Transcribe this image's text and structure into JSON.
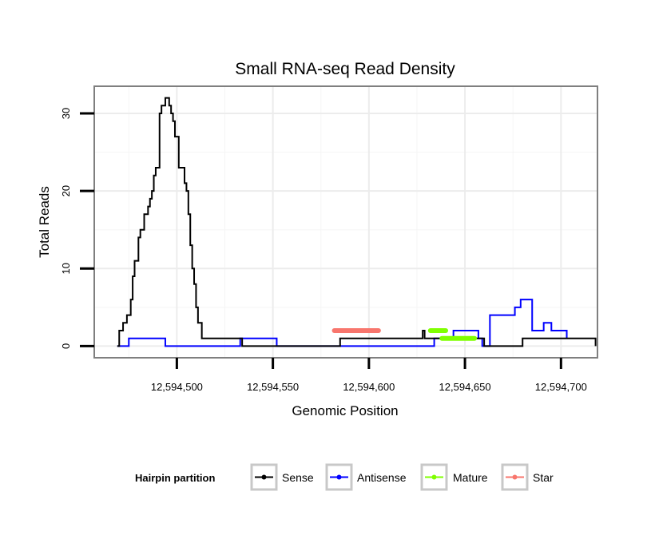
{
  "chart_data": {
    "type": "line",
    "title": "Small RNA-seq Read Density",
    "xlabel": "Genomic Position",
    "ylabel": "Total Reads",
    "xlim": [
      12594457,
      12594719
    ],
    "ylim": [
      -1.5,
      33.5
    ],
    "x_ticks": [
      12594500,
      12594550,
      12594600,
      12594650,
      12594700
    ],
    "x_tick_labels": [
      "12,594,500",
      "12,594,550",
      "12,594,600",
      "12,594,650",
      "12,594,700"
    ],
    "y_ticks": [
      0,
      10,
      20,
      30
    ],
    "y_tick_labels": [
      "0",
      "10",
      "20",
      "30"
    ],
    "grid": true,
    "legend": {
      "title": "Hairpin partition",
      "position": "bottom",
      "entries": [
        "Sense",
        "Antisense",
        "Mature",
        "Star"
      ]
    },
    "series": [
      {
        "name": "Sense",
        "color": "#000000",
        "style": "step",
        "x": [
          12594469,
          12594470,
          12594471,
          12594472,
          12594473,
          12594474,
          12594475,
          12594476,
          12594477,
          12594478,
          12594479,
          12594480,
          12594481,
          12594482,
          12594483,
          12594484,
          12594485,
          12594486,
          12594487,
          12594488,
          12594489,
          12594490,
          12594491,
          12594492,
          12594493,
          12594494,
          12594495,
          12594496,
          12594497,
          12594498,
          12594499,
          12594500,
          12594501,
          12594503,
          12594504,
          12594505,
          12594506,
          12594507,
          12594508,
          12594509,
          12594510,
          12594511,
          12594512,
          12594513,
          12594528,
          12594532,
          12594534,
          12594563,
          12594580,
          12594585,
          12594586,
          12594604,
          12594605,
          12594623,
          12594628,
          12594629,
          12594634,
          12594636,
          12594657,
          12594660,
          12594679,
          12594680,
          12594709,
          12594711,
          12594718
        ],
        "values": [
          0,
          2,
          2,
          3,
          3,
          4,
          4,
          6,
          9,
          11,
          11,
          14,
          15,
          15,
          17,
          17,
          18,
          19,
          20,
          22,
          23,
          23,
          30,
          31,
          31,
          32,
          32,
          31,
          30,
          29,
          27,
          27,
          23,
          23,
          21,
          20,
          17,
          13,
          10,
          8,
          5,
          3,
          3,
          1,
          1,
          1,
          0,
          0,
          0,
          1,
          1,
          1,
          1,
          1,
          2,
          1,
          1,
          1,
          1,
          0,
          0,
          1,
          1,
          1,
          0
        ]
      },
      {
        "name": "Antisense",
        "color": "#0000ff",
        "style": "step",
        "x": [
          12594469,
          12594475,
          12594494,
          12594532,
          12594533,
          12594535,
          12594538,
          12594552,
          12594630,
          12594634,
          12594636,
          12594644,
          12594654,
          12594657,
          12594659,
          12594663,
          12594669,
          12594674,
          12594676,
          12594677,
          12594679,
          12594682,
          12594685,
          12594688,
          12594691,
          12594693,
          12594695,
          12594703
        ],
        "values": [
          0,
          1,
          0,
          0,
          1,
          1,
          1,
          0,
          0,
          1,
          1,
          2,
          2,
          1,
          0,
          4,
          4,
          4,
          5,
          5,
          6,
          6,
          2,
          2,
          3,
          3,
          2,
          1
        ]
      },
      {
        "name": "Mature",
        "color": "#7fff00",
        "style": "segment",
        "segments": [
          {
            "x": [
              12594632,
              12594640
            ],
            "value": 2
          },
          {
            "x": [
              12594638,
              12594655
            ],
            "value": 1
          }
        ]
      },
      {
        "name": "Star",
        "color": "#f8766d",
        "style": "segment",
        "segments": [
          {
            "x": [
              12594582,
              12594605
            ],
            "value": 2
          }
        ]
      }
    ]
  }
}
